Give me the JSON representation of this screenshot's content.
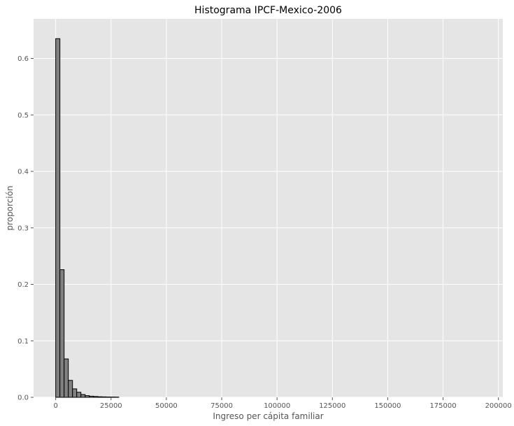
{
  "colors": {
    "plot_background": "#e5e5e5",
    "grid": "#ffffff",
    "bar_fill": "#808080",
    "bar_edge": "#000000",
    "text": "#555555",
    "title": "#000000"
  },
  "chart_data": {
    "type": "bar",
    "title": "Histograma IPCF-Mexico-2006",
    "xlabel": "Ingreso per cápita familiar",
    "ylabel": "proporción",
    "grid": true,
    "xlim": [
      -10000,
      202000
    ],
    "ylim": [
      0,
      0.67
    ],
    "bin_width": 1900,
    "x_ticks": [
      0,
      25000,
      50000,
      75000,
      100000,
      125000,
      150000,
      175000,
      200000
    ],
    "y_ticks": [
      0.0,
      0.1,
      0.2,
      0.3,
      0.4,
      0.5,
      0.6
    ],
    "bins": [
      {
        "x0": 0,
        "x1": 1900,
        "value": 0.635
      },
      {
        "x0": 1900,
        "x1": 3800,
        "value": 0.226
      },
      {
        "x0": 3800,
        "x1": 5700,
        "value": 0.068
      },
      {
        "x0": 5700,
        "x1": 7600,
        "value": 0.03
      },
      {
        "x0": 7600,
        "x1": 9500,
        "value": 0.015
      },
      {
        "x0": 9500,
        "x1": 11400,
        "value": 0.009
      },
      {
        "x0": 11400,
        "x1": 13300,
        "value": 0.005
      },
      {
        "x0": 13300,
        "x1": 15200,
        "value": 0.003
      },
      {
        "x0": 15200,
        "x1": 17100,
        "value": 0.002
      },
      {
        "x0": 17100,
        "x1": 19000,
        "value": 0.0015
      },
      {
        "x0": 19000,
        "x1": 20900,
        "value": 0.001
      },
      {
        "x0": 20900,
        "x1": 22800,
        "value": 0.0008
      },
      {
        "x0": 22800,
        "x1": 24700,
        "value": 0.0006
      },
      {
        "x0": 24700,
        "x1": 26600,
        "value": 0.0005
      },
      {
        "x0": 26600,
        "x1": 28500,
        "value": 0.0004
      }
    ]
  }
}
